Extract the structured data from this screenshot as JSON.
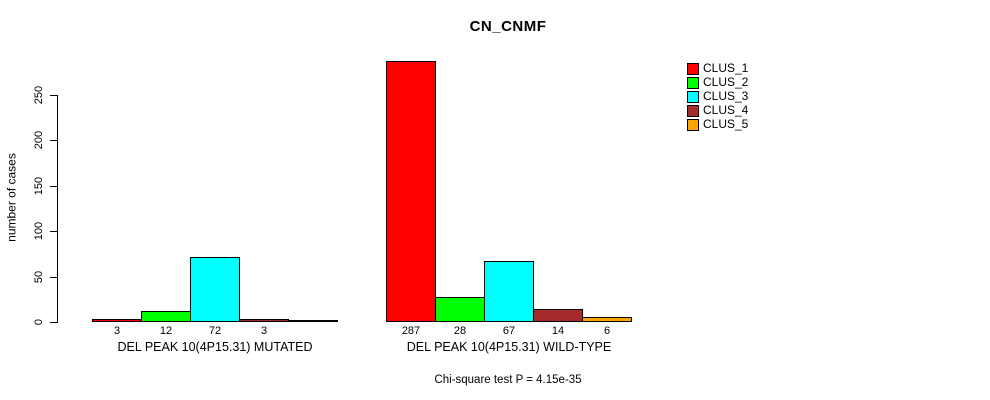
{
  "chart_data": {
    "type": "bar",
    "title": "CN_CNMF",
    "ylabel": "number of cases",
    "y_ticks": [
      0,
      50,
      100,
      150,
      200,
      250
    ],
    "ylim": [
      0,
      290
    ],
    "grid": false,
    "legend_position": "top-right",
    "series": [
      {
        "name": "CLUS_1",
        "color": "#FF0000"
      },
      {
        "name": "CLUS_2",
        "color": "#00FF00"
      },
      {
        "name": "CLUS_3",
        "color": "#00FFFF"
      },
      {
        "name": "CLUS_4",
        "color": "#A52A2A"
      },
      {
        "name": "CLUS_5",
        "color": "#FFA500"
      }
    ],
    "groups": [
      {
        "label": "DEL PEAK 10(4P15.31) MUTATED",
        "values": [
          3,
          12,
          72,
          3,
          0
        ],
        "bar_labels": [
          "3",
          "12",
          "72",
          "3",
          ""
        ]
      },
      {
        "label": "DEL PEAK 10(4P15.31) WILD-TYPE",
        "values": [
          287,
          28,
          67,
          14,
          6
        ],
        "bar_labels": [
          "287",
          "28",
          "67",
          "14",
          "6"
        ]
      }
    ],
    "annotation": "Chi-square test P = 4.15e-35"
  }
}
